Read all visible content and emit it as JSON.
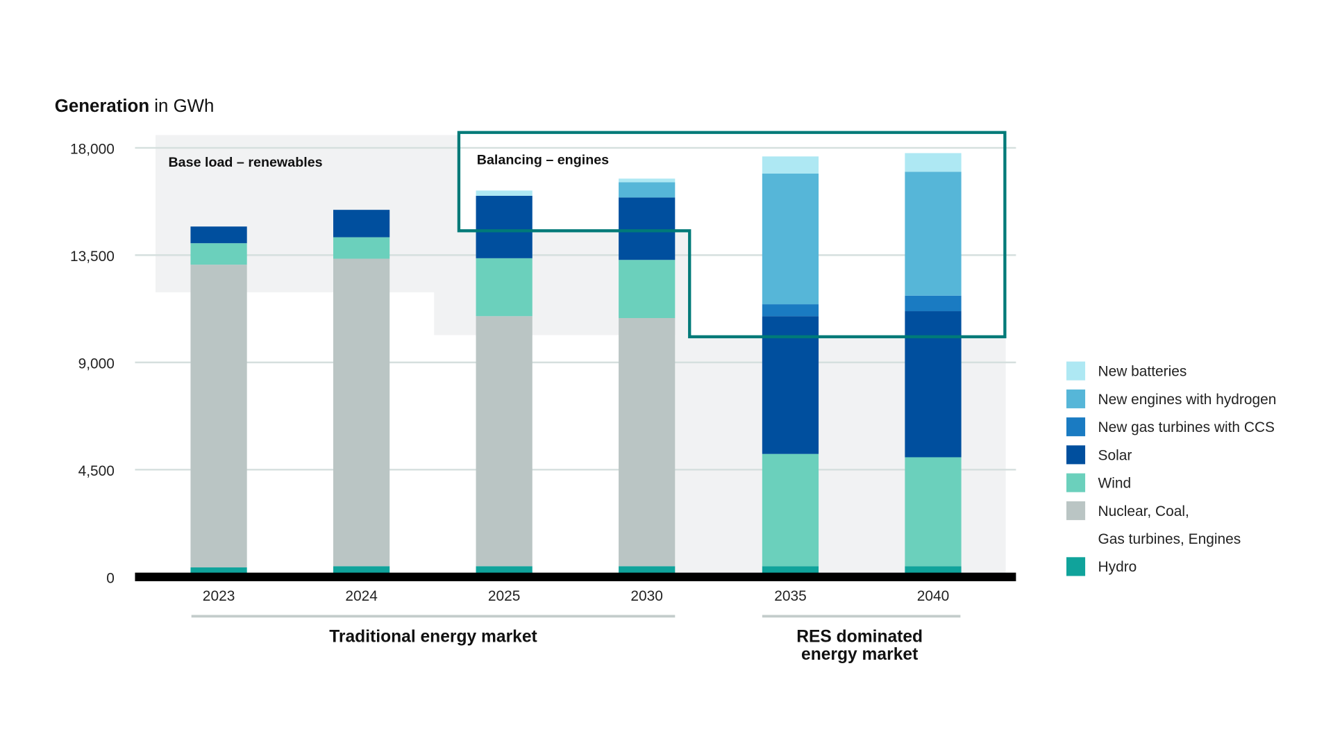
{
  "chart_data": {
    "type": "bar",
    "stacked": true,
    "title_bold": "Generation",
    "title_rest": " in GWh",
    "categories": [
      "2023",
      "2024",
      "2025",
      "2030",
      "2035",
      "2040"
    ],
    "ylim": [
      0,
      18000
    ],
    "yticks": [
      "0",
      "4,500",
      "9,000",
      "13,500",
      "18,000"
    ],
    "ytick_values": [
      0,
      4500,
      9000,
      13500,
      18000
    ],
    "grid": true,
    "legend_position": "right",
    "series": [
      {
        "name": "Hydro",
        "color": "#10a39b",
        "values": [
          400,
          450,
          450,
          450,
          450,
          450
        ]
      },
      {
        "name": "Nuclear, Coal, Gas turbines, Engines",
        "color": "#bac5c4",
        "values": [
          12700,
          12900,
          10490,
          10410,
          0,
          0
        ]
      },
      {
        "name": "Wind",
        "color": "#6bd0bc",
        "values": [
          900,
          900,
          2430,
          2440,
          4710,
          4570
        ]
      },
      {
        "name": "Solar",
        "color": "#004f9e",
        "values": [
          700,
          1150,
          2620,
          2620,
          5780,
          6130
        ]
      },
      {
        "name": "New gas turbines with CCS",
        "color": "#1a7bc2",
        "values": [
          0,
          0,
          0,
          0,
          500,
          650
        ]
      },
      {
        "name": "New engines with hydrogen",
        "color": "#56b6d8",
        "values": [
          0,
          0,
          0,
          640,
          5480,
          5200
        ]
      },
      {
        "name": "New batteries",
        "color": "#aee8f3",
        "values": [
          0,
          0,
          220,
          150,
          720,
          780
        ]
      }
    ],
    "legend": [
      {
        "label": "New batteries",
        "color": "#aee8f3"
      },
      {
        "label": "New engines with hydrogen",
        "color": "#56b6d8"
      },
      {
        "label": "New gas turbines with CCS",
        "color": "#1a7bc2"
      },
      {
        "label": "Solar",
        "color": "#004f9e"
      },
      {
        "label": "Wind",
        "color": "#6bd0bc"
      },
      {
        "label": "Nuclear, Coal,",
        "label2": "Gas turbines, Engines",
        "color": "#bac5c4"
      },
      {
        "label": "Hydro",
        "color": "#10a39b"
      }
    ],
    "annotations": {
      "base_load": "Base load – renewables",
      "balancing": "Balancing – engines",
      "balancing_box_color": "#007a78"
    },
    "groups": [
      {
        "label": "Traditional energy market"
      },
      {
        "label": "RES dominated",
        "label2": "energy market"
      }
    ]
  }
}
